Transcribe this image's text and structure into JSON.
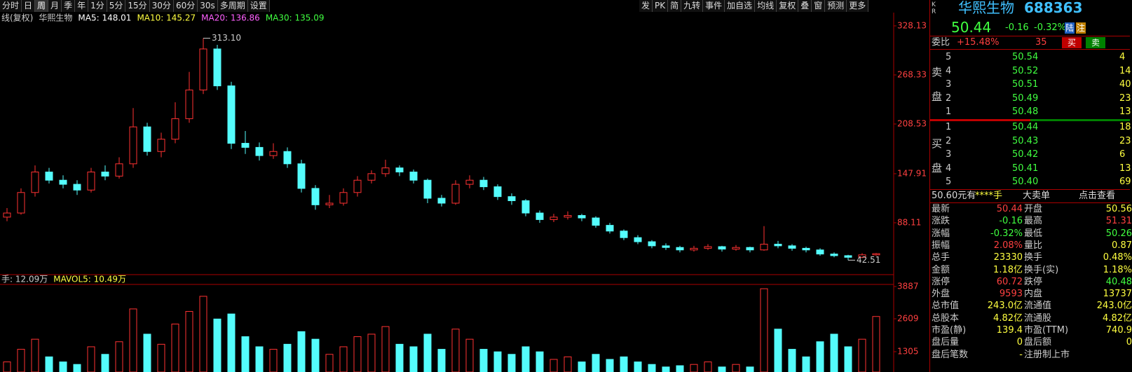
{
  "toolbar_left": [
    "分时",
    "日",
    "周",
    "月",
    "季",
    "年",
    "1分",
    "5分",
    "15分",
    "30分",
    "60分",
    "30s",
    "多周期",
    "设置"
  ],
  "toolbar_right": [
    "发",
    "PK",
    "简",
    "九转",
    "事件",
    "加自选",
    "均线",
    "复权",
    "叠",
    "窗",
    "预测",
    "更多"
  ],
  "chart_data": {
    "type": "candlestick",
    "legend": {
      "mode": "线(复权)",
      "name": "华熙生物",
      "ma": [
        {
          "text": "MA5: 148.01",
          "color": "#ffffff"
        },
        {
          "text": "MA10: 145.27",
          "color": "#ffff40"
        },
        {
          "text": "MA20: 136.86",
          "color": "#ff60ff"
        },
        {
          "text": "MA30: 135.09",
          "color": "#40ff40"
        }
      ]
    },
    "ylim": [
      26.6,
      340.9
    ],
    "yticks": [
      {
        "value": 88.11,
        "label": "88.11"
      },
      147.91,
      208.53,
      268.33,
      328.13
    ],
    "high_label": {
      "value": 313.1,
      "label": "313.10"
    },
    "low_label": 42.51,
    "candles": [
      [
        95,
        106,
        90,
        100
      ],
      [
        100,
        130,
        98,
        125
      ],
      [
        125,
        158,
        120,
        150
      ],
      [
        150,
        155,
        136,
        140
      ],
      [
        140,
        146,
        130,
        135
      ],
      [
        135,
        140,
        122,
        128
      ],
      [
        128,
        155,
        125,
        150
      ],
      [
        150,
        158,
        140,
        145
      ],
      [
        145,
        168,
        142,
        160
      ],
      [
        160,
        228,
        155,
        205
      ],
      [
        205,
        210,
        170,
        175
      ],
      [
        175,
        198,
        168,
        190
      ],
      [
        190,
        235,
        185,
        215
      ],
      [
        215,
        272,
        210,
        250
      ],
      [
        250,
        313.1,
        245,
        300
      ],
      [
        300,
        305,
        250,
        255
      ],
      [
        255,
        260,
        178,
        185
      ],
      [
        185,
        200,
        172,
        180
      ],
      [
        180,
        186,
        164,
        170
      ],
      [
        170,
        185,
        166,
        175
      ],
      [
        175,
        180,
        155,
        160
      ],
      [
        160,
        165,
        125,
        130
      ],
      [
        130,
        134,
        104,
        110
      ],
      [
        110,
        122,
        106,
        112
      ],
      [
        112,
        130,
        109,
        125
      ],
      [
        125,
        145,
        120,
        140
      ],
      [
        140,
        152,
        136,
        148
      ],
      [
        148,
        165,
        144,
        155
      ],
      [
        155,
        158,
        145,
        150
      ],
      [
        150,
        153,
        136,
        140
      ],
      [
        140,
        142,
        112,
        118
      ],
      [
        118,
        122,
        108,
        112
      ],
      [
        112,
        140,
        110,
        135
      ],
      [
        135,
        146,
        130,
        140
      ],
      [
        140,
        144,
        128,
        132
      ],
      [
        132,
        135,
        116,
        120
      ],
      [
        120,
        124,
        110,
        115
      ],
      [
        115,
        117,
        96,
        100
      ],
      [
        100,
        103,
        88,
        92
      ],
      [
        92,
        99,
        89,
        95
      ],
      [
        95,
        102,
        92,
        97
      ],
      [
        97,
        99,
        90,
        94
      ],
      [
        94,
        96,
        82,
        85
      ],
      [
        85,
        88,
        75,
        78
      ],
      [
        78,
        80,
        67,
        70
      ],
      [
        70,
        73,
        62,
        65
      ],
      [
        65,
        67,
        57,
        60
      ],
      [
        60,
        63,
        55,
        58
      ],
      [
        58,
        60,
        52,
        55
      ],
      [
        55,
        60,
        53,
        57
      ],
      [
        57,
        62,
        55,
        59
      ],
      [
        59,
        60,
        53,
        56
      ],
      [
        56,
        61,
        54,
        58
      ],
      [
        58,
        59,
        52,
        55
      ],
      [
        55,
        84,
        54,
        62
      ],
      [
        62,
        66,
        57,
        60
      ],
      [
        60,
        62,
        54,
        57
      ],
      [
        57,
        59,
        52,
        55
      ],
      [
        55,
        57,
        48,
        50
      ],
      [
        50,
        52,
        46,
        48
      ],
      [
        48,
        49,
        42.51,
        46
      ],
      [
        46,
        51,
        45,
        49
      ],
      [
        49,
        51.31,
        48,
        50.44
      ]
    ],
    "volume": {
      "legend": [
        "手: 12.09万",
        "MAVOL5: 10.49万"
      ],
      "ylim": [
        500,
        3970
      ],
      "yticks": [
        1305,
        2609,
        3887
      ],
      "values": [
        900,
        1400,
        1800,
        1100,
        900,
        800,
        1500,
        1200,
        1700,
        3000,
        2000,
        1600,
        2400,
        2900,
        3500,
        2600,
        2800,
        1900,
        1500,
        1400,
        1600,
        2100,
        1800,
        1200,
        1500,
        1900,
        2000,
        2300,
        1600,
        1500,
        2000,
        1400,
        2200,
        1800,
        1400,
        1300,
        1200,
        1500,
        1300,
        1000,
        1100,
        900,
        1200,
        1000,
        1100,
        900,
        800,
        700,
        750,
        800,
        900,
        700,
        800,
        700,
        3800,
        2200,
        1400,
        1100,
        1700,
        2000,
        1500,
        1800,
        2700
      ]
    },
    "up_color": "#ff3232",
    "down_color": "#54fcfc"
  },
  "panel": {
    "kr": "K R",
    "name": "华熙生物",
    "code": "688363",
    "price": "50.44",
    "change": "-0.16",
    "pct": "-0.32%",
    "tags": [
      "陆",
      "注"
    ],
    "ratio": {
      "label": "委比",
      "value": "+15.48%",
      "diff": "35",
      "buy": "买",
      "sell": "卖"
    },
    "side_labels": {
      "sell": [
        "卖",
        "盘"
      ],
      "buy": [
        "买",
        "盘"
      ]
    },
    "sell": [
      [
        "5",
        "50.54",
        "4"
      ],
      [
        "4",
        "50.52",
        "14"
      ],
      [
        "3",
        "50.51",
        "40"
      ],
      [
        "2",
        "50.49",
        "23"
      ],
      [
        "1",
        "50.48",
        "13"
      ]
    ],
    "buy": [
      [
        "1",
        "50.44",
        "18"
      ],
      [
        "2",
        "50.43",
        "23"
      ],
      [
        "3",
        "50.42",
        "6"
      ],
      [
        "4",
        "50.41",
        "13"
      ],
      [
        "5",
        "50.40",
        "69"
      ]
    ],
    "big": [
      "50.60元有",
      "****手",
      "大卖单",
      "点击查看"
    ],
    "stats": [
      [
        "最新",
        "50.44",
        "开盘",
        "50.56"
      ],
      [
        "涨跌",
        "-0.16",
        "最高",
        "51.31"
      ],
      [
        "涨幅",
        "-0.32%",
        "最低",
        "50.26"
      ],
      [
        "振幅",
        "2.08%",
        "量比",
        "0.87"
      ],
      [
        "总手",
        "23330",
        "换手",
        "0.48%"
      ],
      [
        "金额",
        "1.18亿",
        "换手(实)",
        "1.18%"
      ],
      [
        "涨停",
        "60.72",
        "跌停",
        "40.48"
      ],
      [
        "外盘",
        "9593",
        "内盘",
        "13737"
      ],
      [
        "总市值",
        "243.0亿",
        "流通值",
        "243.0亿"
      ],
      [
        "总股本",
        "4.82亿",
        "流通股",
        "4.82亿"
      ],
      [
        "市盈(静)",
        "139.4",
        "市盈(TTM)",
        "740.9"
      ],
      [
        "盘后量",
        "0",
        "盘后额",
        "0"
      ],
      [
        "盘后笔数",
        "-",
        "注册制上市",
        ""
      ]
    ]
  }
}
